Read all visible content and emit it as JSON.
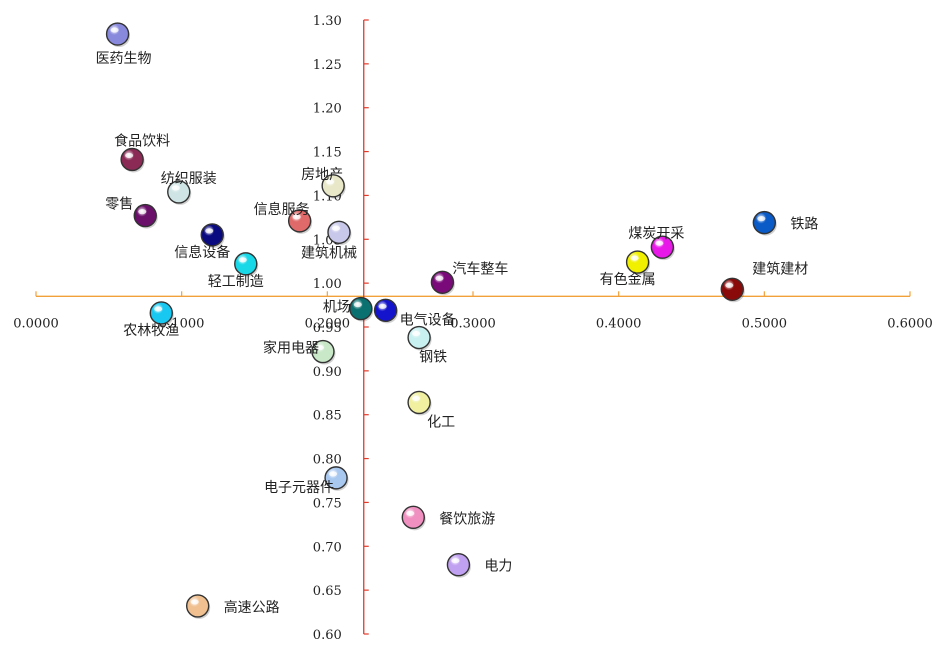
{
  "chart_data": {
    "type": "scatter",
    "title": "",
    "xlabel": "",
    "ylabel": "",
    "xlim": [
      0.0,
      0.6
    ],
    "ylim": [
      0.6,
      1.3
    ],
    "grid": false,
    "axis_colors": {
      "x_axis": "#f2a03a",
      "y_axis": "#e03a2a"
    },
    "x_ticks": [
      {
        "value": 0.0,
        "label": "0.0000"
      },
      {
        "value": 0.1,
        "label": "0.1000"
      },
      {
        "value": 0.2,
        "label": "0.2000"
      },
      {
        "value": 0.3,
        "label": "0.3000"
      },
      {
        "value": 0.4,
        "label": "0.4000"
      },
      {
        "value": 0.5,
        "label": "0.5000"
      },
      {
        "value": 0.6,
        "label": "0.6000"
      }
    ],
    "y_ticks": [
      {
        "value": 1.3,
        "label": "1.30"
      },
      {
        "value": 1.25,
        "label": "1.25"
      },
      {
        "value": 1.2,
        "label": "1.20"
      },
      {
        "value": 1.15,
        "label": "1.15"
      },
      {
        "value": 1.1,
        "label": "1.10"
      },
      {
        "value": 1.05,
        "label": "1.05"
      },
      {
        "value": 1.0,
        "label": "1.00"
      },
      {
        "value": 0.95,
        "label": "0.95"
      },
      {
        "value": 0.9,
        "label": "0.90"
      },
      {
        "value": 0.85,
        "label": "0.85"
      },
      {
        "value": 0.8,
        "label": "0.80"
      },
      {
        "value": 0.75,
        "label": "0.75"
      },
      {
        "value": 0.7,
        "label": "0.70"
      },
      {
        "value": 0.65,
        "label": "0.65"
      },
      {
        "value": 0.6,
        "label": "0.60"
      }
    ],
    "points": [
      {
        "label": "医药生物",
        "x": 0.056,
        "y": 1.284,
        "color": "#8888dd",
        "label_pos": "below"
      },
      {
        "label": "食品饮料",
        "x": 0.066,
        "y": 1.141,
        "color": "#8a2a55",
        "label_pos": "above"
      },
      {
        "label": "纺织服装",
        "x": 0.098,
        "y": 1.104,
        "color": "#cfe5e5",
        "label_pos": "above-right"
      },
      {
        "label": "零售",
        "x": 0.075,
        "y": 1.077,
        "color": "#6a0f6a",
        "label_pos": "above-left"
      },
      {
        "label": "信息设备",
        "x": 0.121,
        "y": 1.055,
        "color": "#0a0a80",
        "label_pos": "below-left"
      },
      {
        "label": "轻工制造",
        "x": 0.144,
        "y": 1.022,
        "color": "#18d8e8",
        "label_pos": "below-left"
      },
      {
        "label": "信息服务",
        "x": 0.181,
        "y": 1.071,
        "color": "#e06a6a",
        "label_pos": "above-left"
      },
      {
        "label": "房地产",
        "x": 0.204,
        "y": 1.111,
        "color": "#e8e8c8",
        "label_pos": "above-left"
      },
      {
        "label": "建筑机械",
        "x": 0.208,
        "y": 1.058,
        "color": "#c8c8ea",
        "label_pos": "below-left"
      },
      {
        "label": "汽车整车",
        "x": 0.279,
        "y": 1.001,
        "color": "#7a0a7a",
        "label_pos": "above-right"
      },
      {
        "label": "机场",
        "x": 0.223,
        "y": 0.971,
        "color": "#0a7070",
        "label_pos": "above-left"
      },
      {
        "label": "电气设备",
        "x": 0.24,
        "y": 0.969,
        "color": "#1414cc",
        "label_pos": "below-right"
      },
      {
        "label": "家用电器",
        "x": 0.197,
        "y": 0.922,
        "color": "#c8e8c8",
        "label_pos": "left"
      },
      {
        "label": "钢铁",
        "x": 0.263,
        "y": 0.938,
        "color": "#c8f0f0",
        "label_pos": "below-right"
      },
      {
        "label": "化工",
        "x": 0.263,
        "y": 0.864,
        "color": "#f0f0a0",
        "label_pos": "below-right"
      },
      {
        "label": "电子元器件",
        "x": 0.206,
        "y": 0.778,
        "color": "#a8c8f0",
        "label_pos": "below-left"
      },
      {
        "label": "餐饮旅游",
        "x": 0.259,
        "y": 0.733,
        "color": "#f090c0",
        "label_pos": "right"
      },
      {
        "label": "电力",
        "x": 0.29,
        "y": 0.679,
        "color": "#c0a0f0",
        "label_pos": "right"
      },
      {
        "label": "高速公路",
        "x": 0.111,
        "y": 0.632,
        "color": "#f0c090",
        "label_pos": "right"
      },
      {
        "label": "农林牧渔",
        "x": 0.086,
        "y": 0.966,
        "color": "#18c8f0",
        "label_pos": "below-left"
      },
      {
        "label": "煤炭开采",
        "x": 0.43,
        "y": 1.041,
        "color": "#e818e8",
        "label_pos": "above"
      },
      {
        "label": "有色金属",
        "x": 0.413,
        "y": 1.024,
        "color": "#f0f000",
        "label_pos": "below-left"
      },
      {
        "label": "铁路",
        "x": 0.5,
        "y": 1.069,
        "color": "#0a5ac8",
        "label_pos": "right"
      },
      {
        "label": "建筑建材",
        "x": 0.478,
        "y": 0.993,
        "color": "#8a0a0a",
        "label_pos": "above-right"
      }
    ]
  }
}
